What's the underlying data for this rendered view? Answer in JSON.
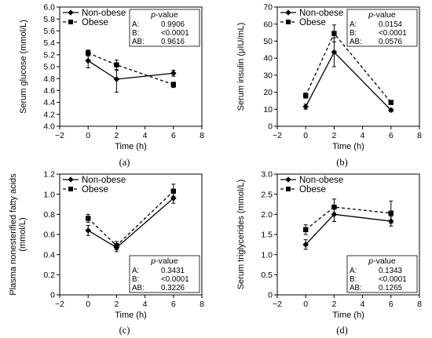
{
  "legend": {
    "non_obese": "Non-obese",
    "obese": "Obese"
  },
  "pvalue_title_italic": "p",
  "pvalue_title_rest": "-value",
  "chart_data": [
    {
      "type": "line",
      "panel_label": "(a)",
      "ylabel": "Serum glucose (mmol/L)",
      "xlabel": "Time (h)",
      "xlim": [
        -2,
        8
      ],
      "xticks": [
        -2,
        0,
        2,
        4,
        6,
        8
      ],
      "ylim": [
        4.0,
        6.0
      ],
      "yticks": [
        4.0,
        4.2,
        4.4,
        4.6,
        4.8,
        5.0,
        5.2,
        5.4,
        5.6,
        5.8,
        6.0
      ],
      "ytick_labels": [
        "4.0",
        "4.2",
        "4.4",
        "4.6",
        "4.8",
        "5.0",
        "5.2",
        "5.4",
        "5.6",
        "5.8",
        "6.0"
      ],
      "x": [
        0,
        2,
        6
      ],
      "series": [
        {
          "name": "Non-obese",
          "values": [
            5.1,
            4.79,
            4.89
          ],
          "err_lo": [
            0.12,
            0.22,
            0.05
          ],
          "err_hi": [
            0.1,
            0.16,
            0.05
          ],
          "marker": "diamond",
          "line": "solid"
        },
        {
          "name": "Obese",
          "values": [
            5.23,
            5.03,
            4.7
          ],
          "err_lo": [
            0.05,
            0.09,
            0.05
          ],
          "err_hi": [
            0.05,
            0.08,
            0.04
          ],
          "marker": "square",
          "line": "dashed"
        }
      ],
      "legend_position": "top-left",
      "pvalue_box_position": "top-right",
      "pvalues": [
        {
          "label": "A:",
          "value": "0.9906"
        },
        {
          "label": "B:",
          "value": "<0.0001"
        },
        {
          "label": "AB:",
          "value": "0.9616"
        }
      ]
    },
    {
      "type": "line",
      "panel_label": "(b)",
      "ylabel": "Serum insulin (μIU/mL)",
      "xlabel": "Time (h)",
      "xlim": [
        -2,
        8
      ],
      "xticks": [
        -2,
        0,
        2,
        4,
        6,
        8
      ],
      "ylim": [
        0,
        70
      ],
      "yticks": [
        0,
        10,
        20,
        30,
        40,
        50,
        60,
        70
      ],
      "ytick_labels": [
        "0",
        "10",
        "20",
        "30",
        "40",
        "50",
        "60",
        "70"
      ],
      "x": [
        0,
        2,
        6
      ],
      "series": [
        {
          "name": "Non-obese",
          "values": [
            11.5,
            43.5,
            9.5
          ],
          "err_lo": [
            1.5,
            8.5,
            1
          ],
          "err_hi": [
            1.5,
            8.5,
            1
          ],
          "marker": "diamond",
          "line": "solid"
        },
        {
          "name": "Obese",
          "values": [
            18,
            54.5,
            14
          ],
          "err_lo": [
            1.5,
            5,
            1.2
          ],
          "err_hi": [
            1.5,
            5,
            1.2
          ],
          "marker": "square",
          "line": "dashed"
        }
      ],
      "legend_position": "top-left",
      "pvalue_box_position": "top-right",
      "pvalues": [
        {
          "label": "A:",
          "value": "0.0154"
        },
        {
          "label": "B:",
          "value": "<0.0001"
        },
        {
          "label": "AB:",
          "value": "0.0576"
        }
      ]
    },
    {
      "type": "line",
      "panel_label": "(c)",
      "ylabel": "Plasma nonesterified fatty acids (mmol/L)",
      "ylabel_lines": [
        "Plasma nonesterified fatty acids",
        "(mmol/L)"
      ],
      "xlabel": "Time (h)",
      "xlim": [
        -2,
        8
      ],
      "xticks": [
        -2,
        0,
        2,
        4,
        6,
        8
      ],
      "ylim": [
        0,
        1.2
      ],
      "yticks": [
        0,
        0.2,
        0.4,
        0.6,
        0.8,
        1.0,
        1.2
      ],
      "ytick_labels": [
        "0",
        "0.2",
        "0.4",
        "0.6",
        "0.8",
        "1.0",
        "1.2"
      ],
      "x": [
        0,
        2,
        6
      ],
      "series": [
        {
          "name": "Non-obese",
          "values": [
            0.64,
            0.47,
            0.96
          ],
          "err_lo": [
            0.05,
            0.04,
            0.05
          ],
          "err_hi": [
            0.05,
            0.04,
            0.05
          ],
          "marker": "diamond",
          "line": "solid"
        },
        {
          "name": "Obese",
          "values": [
            0.76,
            0.49,
            1.03
          ],
          "err_lo": [
            0.04,
            0.04,
            0.05
          ],
          "err_hi": [
            0.04,
            0.04,
            0.07
          ],
          "marker": "square",
          "line": "dashed"
        }
      ],
      "legend_position": "top-left",
      "pvalue_box_position": "bottom-right",
      "pvalues": [
        {
          "label": "A:",
          "value": "0.3431"
        },
        {
          "label": "B:",
          "value": "<0.0001"
        },
        {
          "label": "AB:",
          "value": "0.3226"
        }
      ]
    },
    {
      "type": "line",
      "panel_label": "(d)",
      "ylabel": "Serum triglycerides (mmol/L)",
      "xlabel": "Time (h)",
      "xlim": [
        -2,
        8
      ],
      "xticks": [
        -2,
        0,
        2,
        4,
        6,
        8
      ],
      "ylim": [
        0,
        3.0
      ],
      "yticks": [
        0,
        0.5,
        1.0,
        1.5,
        2.0,
        2.5,
        3.0
      ],
      "ytick_labels": [
        "0",
        "0.5",
        "1.0",
        "1.5",
        "2.0",
        "2.5",
        "3.0"
      ],
      "x": [
        0,
        2,
        6
      ],
      "series": [
        {
          "name": "Non-obese",
          "values": [
            1.25,
            2.0,
            1.83
          ],
          "err_lo": [
            0.12,
            0.18,
            0.12
          ],
          "err_hi": [
            0.12,
            0.18,
            0.12
          ],
          "marker": "diamond",
          "line": "solid"
        },
        {
          "name": "Obese",
          "values": [
            1.62,
            2.18,
            2.03
          ],
          "err_lo": [
            0.12,
            0.2,
            0.25
          ],
          "err_hi": [
            0.12,
            0.2,
            0.3
          ],
          "marker": "square",
          "line": "dashed"
        }
      ],
      "legend_position": "top-left",
      "pvalue_box_position": "bottom-right",
      "pvalues": [
        {
          "label": "A:",
          "value": "0.1343"
        },
        {
          "label": "B:",
          "value": "<0.0001"
        },
        {
          "label": "AB:",
          "value": "0.1265"
        }
      ]
    }
  ]
}
